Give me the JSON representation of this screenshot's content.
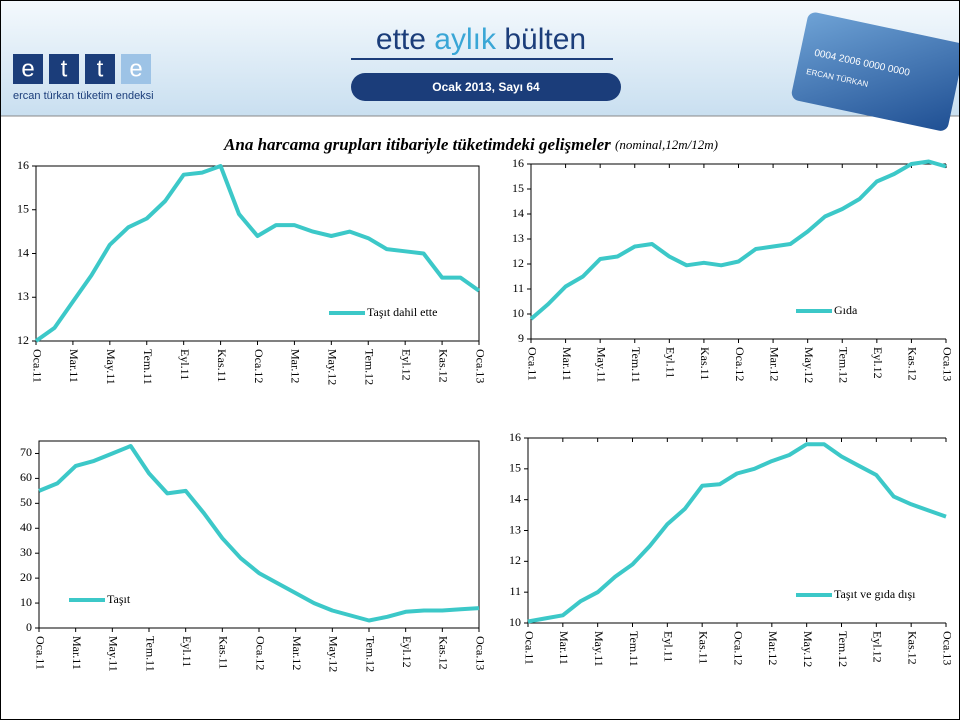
{
  "header": {
    "logo": [
      "e",
      "t",
      "t",
      "e"
    ],
    "tagline": "ercan türkan tüketim endeksi",
    "title": [
      "ette",
      "aylık",
      "bülten"
    ],
    "issue": "Ocak 2013, Sayı  64",
    "card": {
      "number": "0004 2006 0000 0000",
      "name": "ERCAN TÜRKAN"
    }
  },
  "main_title": "Ana harcama grupları itibariyle tüketimdeki gelişmeler",
  "main_subtitle": "(nominal,12m/12m)",
  "chart_data": [
    {
      "type": "line",
      "frame": true,
      "legend": "lower right",
      "categories": [
        "Oca.11",
        null,
        "Mar.11",
        null,
        "May.11",
        null,
        "Tem.11",
        null,
        "Eyl.11",
        null,
        "Kas.11",
        null,
        "Oca.12",
        null,
        "Mar.12",
        null,
        "May.12",
        null,
        "Tem.12",
        null,
        "Eyl.12",
        null,
        "Kas.12",
        null,
        "Oca.13"
      ],
      "series": [
        {
          "name": "Taşıt dahil ette",
          "color": "#3cc8c8",
          "values": [
            12.0,
            12.3,
            12.9,
            13.5,
            14.2,
            14.6,
            14.8,
            15.2,
            15.8,
            15.85,
            16.0,
            14.9,
            14.4,
            14.65,
            14.65,
            14.5,
            14.4,
            14.5,
            14.35,
            14.1,
            14.05,
            14.0,
            13.45,
            13.45,
            13.15
          ]
        }
      ],
      "ylim": [
        12,
        16
      ],
      "yticks": [
        12,
        13,
        14,
        15,
        16
      ]
    },
    {
      "type": "line",
      "frame": false,
      "legend": "lower right",
      "categories": [
        "Oca.11",
        null,
        "Mar.11",
        null,
        "May.11",
        null,
        "Tem.11",
        null,
        "Eyl.11",
        null,
        "Kas.11",
        null,
        "Oca.12",
        null,
        "Mar.12",
        null,
        "May.12",
        null,
        "Tem.12",
        null,
        "Eyl.12",
        null,
        "Kas.12",
        null,
        "Oca.13"
      ],
      "series": [
        {
          "name": "Gıda",
          "color": "#3cc8c8",
          "values": [
            9.8,
            10.4,
            11.1,
            11.5,
            12.2,
            12.3,
            12.7,
            12.8,
            12.3,
            11.95,
            12.05,
            11.95,
            12.1,
            12.6,
            12.7,
            12.8,
            13.3,
            13.9,
            14.2,
            14.6,
            15.3,
            15.6,
            16.0,
            16.1,
            15.9
          ]
        }
      ],
      "ylim": [
        9,
        16
      ],
      "yticks": [
        9,
        10,
        11,
        12,
        13,
        14,
        15,
        16
      ]
    },
    {
      "type": "line",
      "frame": true,
      "legend": "lower left",
      "categories": [
        "Oca.11",
        null,
        "Mar.11",
        null,
        "May.11",
        null,
        "Tem.11",
        null,
        "Eyl.11",
        null,
        "Kas.11",
        null,
        "Oca.12",
        null,
        "Mar.12",
        null,
        "May.12",
        null,
        "Tem.12",
        null,
        "Eyl.12",
        null,
        "Kas.12",
        null,
        "Oca.13"
      ],
      "series": [
        {
          "name": "Taşıt",
          "color": "#3cc8c8",
          "values": [
            55,
            58,
            65,
            67,
            70,
            73,
            62,
            54,
            55,
            46,
            36,
            28,
            22,
            18,
            14,
            10,
            7,
            5,
            3,
            4.5,
            6.5,
            7,
            7,
            7.5,
            8
          ]
        }
      ],
      "ylim": [
        0,
        75
      ],
      "yticks": [
        0,
        10,
        20,
        30,
        40,
        50,
        60,
        70
      ]
    },
    {
      "type": "line",
      "frame": false,
      "legend": "lower right",
      "categories": [
        "Oca.11",
        null,
        "Mar.11",
        null,
        "May.11",
        null,
        "Tem.11",
        null,
        "Eyl.11",
        null,
        "Kas.11",
        null,
        "Oca.12",
        null,
        "Mar.12",
        null,
        "May.12",
        null,
        "Tem.12",
        null,
        "Eyl.12",
        null,
        "Kas.12",
        null,
        "Oca.13"
      ],
      "series": [
        {
          "name": "Taşıt ve gıda dışı",
          "color": "#3cc8c8",
          "values": [
            10.05,
            10.15,
            10.25,
            10.7,
            11.0,
            11.5,
            11.9,
            12.5,
            13.2,
            13.7,
            14.45,
            14.5,
            14.85,
            15.0,
            15.25,
            15.45,
            15.8,
            15.8,
            15.4,
            15.1,
            14.8,
            14.1,
            13.85,
            13.65,
            13.45
          ]
        }
      ],
      "ylim": [
        10,
        16
      ],
      "yticks": [
        10,
        11,
        12,
        13,
        14,
        15,
        16
      ]
    }
  ]
}
